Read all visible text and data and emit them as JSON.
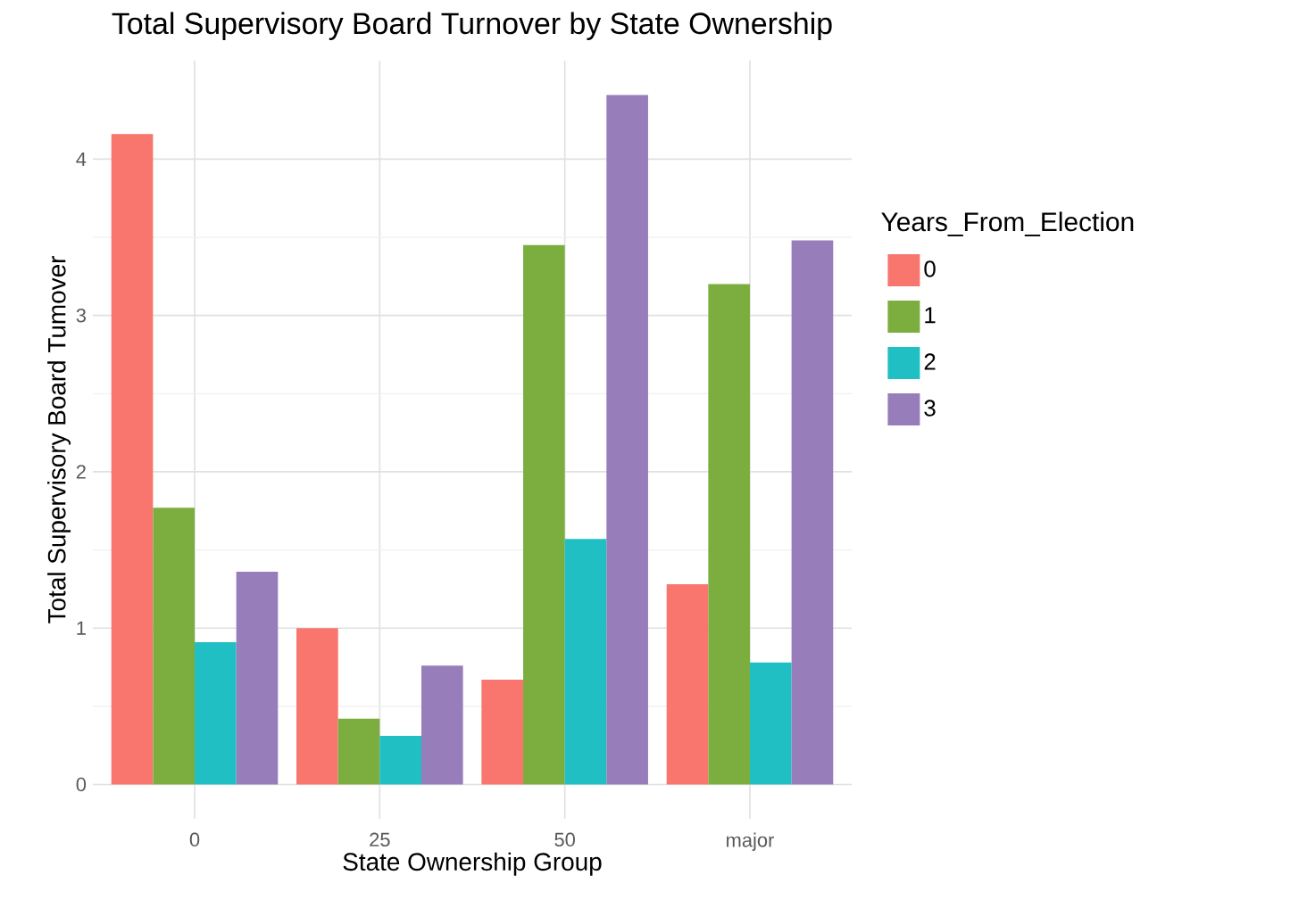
{
  "chart_data": {
    "type": "bar",
    "title": "Total Supervisory Board Turnover by State Ownership",
    "xlabel": "State Ownership Group",
    "ylabel": "Total Supervisory Board Tumover",
    "legend_title": "Years_From_Election",
    "categories": [
      "0",
      "25",
      "50",
      "major"
    ],
    "series": [
      {
        "name": "0",
        "color": "#f8766d",
        "values": [
          4.16,
          1.0,
          0.67,
          1.28
        ]
      },
      {
        "name": "1",
        "color": "#7cae3f",
        "values": [
          1.77,
          0.42,
          3.45,
          3.2
        ]
      },
      {
        "name": "2",
        "color": "#1fbfc3",
        "values": [
          0.91,
          0.31,
          1.57,
          0.78
        ]
      },
      {
        "name": "3",
        "color": "#987dbb",
        "values": [
          1.36,
          0.76,
          4.41,
          3.48
        ]
      }
    ],
    "ylim": [
      -0.22,
      4.63
    ],
    "yticks": [
      0,
      1,
      2,
      3,
      4
    ],
    "grid": true,
    "legend": "right"
  }
}
